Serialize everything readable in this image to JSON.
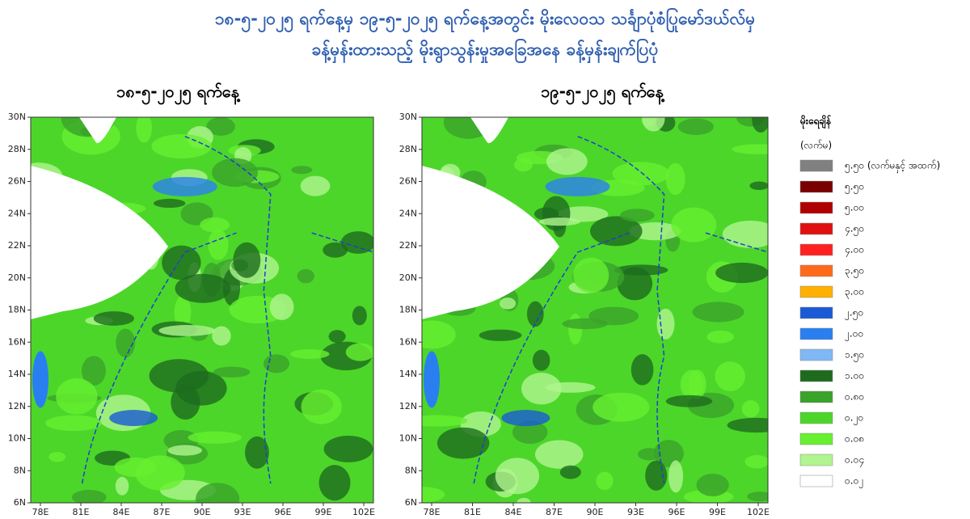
{
  "header": {
    "title_lines": [
      "၁၈-၅-၂၀၂၅ ရက်နေ့မှ ၁၉-၅-၂၀၂၅ ရက်နေ့အတွင်း မိုးလေဝသ သင်္ချာပုံစံပြုမော်ဒယ်လ်မှ",
      "ခန့်မှန်းထားသည့် မိုးရွာသွန်းမှုအခြေအနေ ခန့်မှန်းချက်ပြပုံ"
    ]
  },
  "panels": [
    {
      "title": "၁၈-၅-၂၀၂၅ ရက်နေ့",
      "y_ticks": [
        "30N",
        "28N",
        "26N",
        "24N",
        "22N",
        "20N",
        "18N",
        "16N",
        "14N",
        "12N",
        "10N",
        "8N",
        "6N"
      ],
      "x_ticks": [
        "78E",
        "81E",
        "84E",
        "87E",
        "90E",
        "93E",
        "96E",
        "99E",
        "102E"
      ]
    },
    {
      "title": "၁၉-၅-၂၀၂၅ ရက်နေ့",
      "y_ticks": [
        "30N",
        "28N",
        "26N",
        "24N",
        "22N",
        "20N",
        "18N",
        "16N",
        "14N",
        "12N",
        "10N",
        "8N",
        "6N"
      ],
      "x_ticks": [
        "78E",
        "81E",
        "84E",
        "87E",
        "90E",
        "93E",
        "96E",
        "99E",
        "102E"
      ]
    }
  ],
  "legend": {
    "title": "မိုးရေချိန်",
    "unit": "(လက်မ)",
    "entries": [
      {
        "label": "၅.၅၀ (လက်မနှင့် အထက်)",
        "color": "#808080"
      },
      {
        "label": "၅.၅၀",
        "color": "#7a0000"
      },
      {
        "label": "၅.၀၀",
        "color": "#b00000"
      },
      {
        "label": "၄.၅၀",
        "color": "#e01010"
      },
      {
        "label": "၄.၀၀",
        "color": "#ff2020"
      },
      {
        "label": "၃.၅၀",
        "color": "#ff6a1a"
      },
      {
        "label": "၃.၀၀",
        "color": "#ffb000"
      },
      {
        "label": "၂.၅၀",
        "color": "#1a5ad6"
      },
      {
        "label": "၂.၀၀",
        "color": "#2a7ff0"
      },
      {
        "label": "၁.၅၀",
        "color": "#80b8f5"
      },
      {
        "label": "၁.၀၀",
        "color": "#1e6b1e"
      },
      {
        "label": "၀.၈၀",
        "color": "#3aa32a"
      },
      {
        "label": "၀.၂၀",
        "color": "#4cd62a"
      },
      {
        "label": "၀.၀၈",
        "color": "#66f030"
      },
      {
        "label": "၀.၀၄",
        "color": "#b0f590"
      },
      {
        "label": "၀.၀၂",
        "color": "#ffffff"
      }
    ]
  }
}
